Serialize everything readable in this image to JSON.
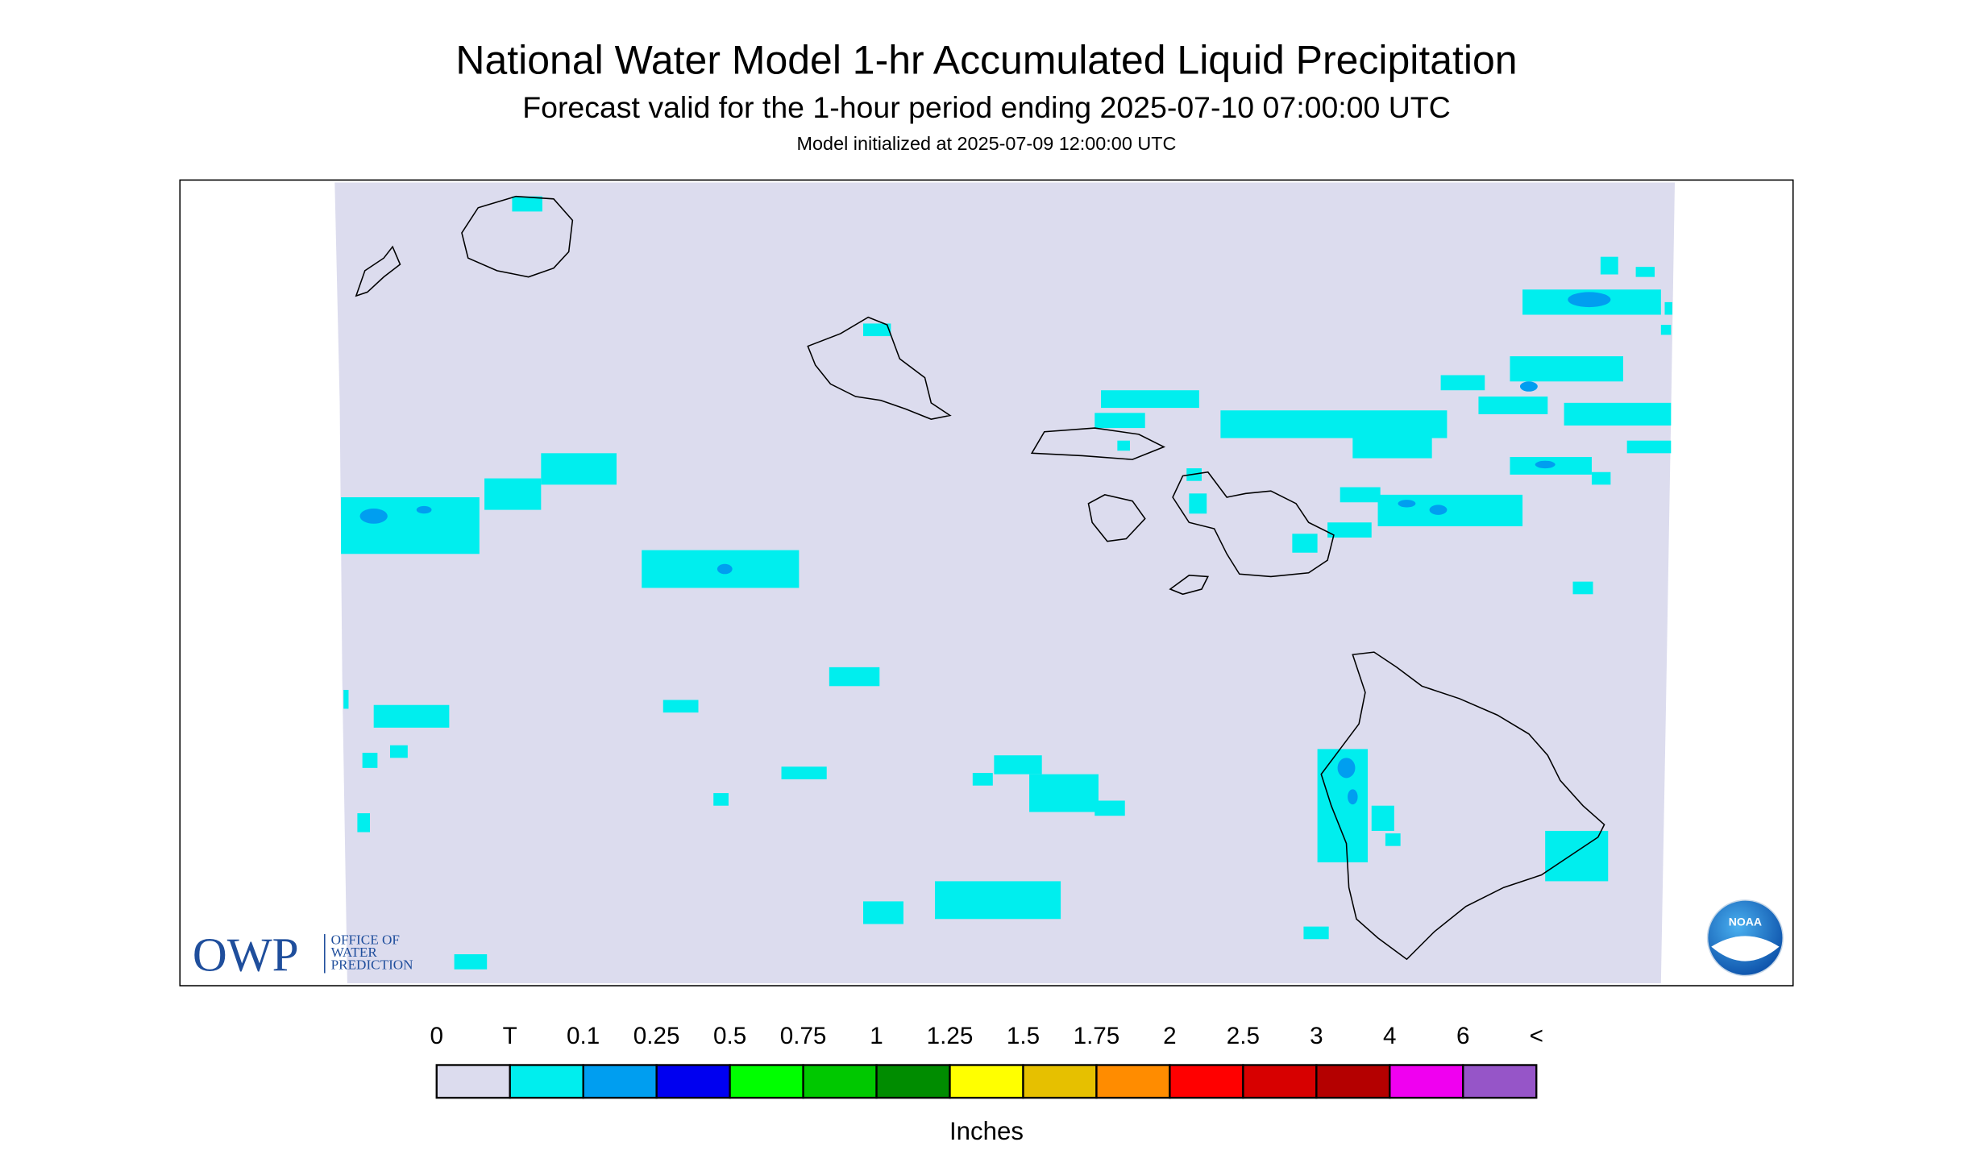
{
  "header": {
    "title": "National Water Model 1-hr Accumulated Liquid Precipitation",
    "subtitle": "Forecast valid for the 1-hour period ending 2025-07-10 07:00:00 UTC",
    "init": "Model initialized at 2025-07-09 12:00:00 UTC"
  },
  "logos": {
    "owp": "OWP",
    "owp_lines": [
      "OFFICE OF",
      "WATER",
      "PREDICTION"
    ],
    "noaa": "NOAA"
  },
  "legend": {
    "labels": [
      "0",
      "T",
      "0.1",
      "0.25",
      "0.5",
      "0.75",
      "1",
      "1.25",
      "1.5",
      "1.75",
      "2",
      "2.5",
      "3",
      "4",
      "6",
      "<"
    ],
    "colors": [
      "#dcdcee",
      "#00eeee",
      "#009ef0",
      "#0000f0",
      "#00ff00",
      "#00c800",
      "#008c00",
      "#ffff00",
      "#e6c000",
      "#ff8c00",
      "#ff0000",
      "#d70000",
      "#b40000",
      "#f000f0",
      "#9655c8"
    ],
    "unit": "Inches"
  }
}
